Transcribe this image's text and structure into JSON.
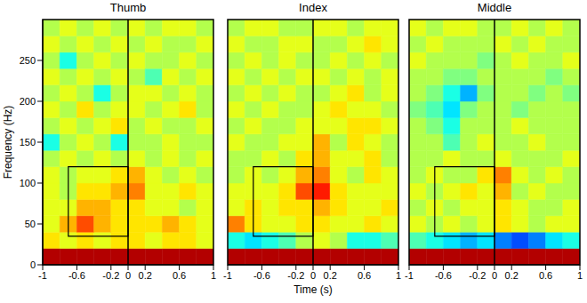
{
  "chart_data": [
    {
      "type": "heatmap",
      "title": "Thumb",
      "ylabel": "Frequency (Hz)",
      "xlim": [
        -1,
        1
      ],
      "xticks": [
        -1,
        -0.6,
        -0.2,
        0,
        0.2,
        0.6,
        1
      ],
      "ylim": [
        0,
        300
      ],
      "yticks": [
        0,
        50,
        100,
        150,
        200,
        250
      ],
      "x_bins": [
        -1,
        -0.8,
        -0.6,
        -0.4,
        -0.2,
        0,
        0.2,
        0.4,
        0.6,
        0.8,
        1
      ],
      "y_bins": [
        0,
        20,
        40,
        60,
        80,
        100,
        120,
        140,
        160,
        180,
        200,
        220,
        240,
        260,
        280,
        300
      ],
      "color_range": [
        -1,
        1
      ],
      "box": {
        "x": [
          -0.7,
          0
        ],
        "y": [
          35,
          120
        ]
      },
      "vline": 0,
      "cells": [
        [
          0.9,
          0.9,
          0.9,
          0.9,
          0.9,
          0.9,
          0.9,
          0.9,
          0.9,
          0.9
        ],
        [
          0.3,
          0.2,
          0.3,
          0.2,
          0.3,
          0.3,
          0.2,
          0.3,
          0.3,
          0.2
        ],
        [
          0.2,
          0.4,
          0.6,
          0.4,
          0.3,
          0.3,
          0.3,
          0.4,
          0.3,
          0.2
        ],
        [
          0.2,
          0.2,
          0.4,
          0.4,
          0.3,
          0.3,
          0.2,
          0.2,
          0.1,
          0.2
        ],
        [
          0.2,
          0.1,
          0.3,
          0.3,
          0.4,
          0.5,
          0.2,
          0.2,
          0.3,
          0.2
        ],
        [
          0.2,
          0.1,
          0.2,
          0.2,
          0.3,
          0.4,
          0.2,
          0.1,
          0.2,
          0.1
        ],
        [
          0.1,
          0.2,
          0.1,
          0.2,
          0.1,
          0.2,
          0.1,
          0.2,
          0.1,
          0.2
        ],
        [
          -0.2,
          0.1,
          0.2,
          0.1,
          -0.2,
          0.1,
          0.1,
          0.2,
          0.1,
          0.1
        ],
        [
          0.1,
          0.2,
          0.1,
          0.2,
          0.3,
          0.1,
          0.2,
          0.1,
          0.1,
          0.2
        ],
        [
          0.2,
          0.1,
          0.3,
          0.1,
          0.2,
          0.2,
          0.1,
          0.2,
          0.3,
          0.1
        ],
        [
          0.1,
          0.2,
          0.1,
          -0.2,
          0.1,
          0.2,
          0.2,
          0.1,
          0.2,
          0.1
        ],
        [
          0.2,
          0.1,
          0.2,
          0.1,
          0.2,
          0.1,
          -0.1,
          0.2,
          0.1,
          0.2
        ],
        [
          0.1,
          -0.2,
          0.1,
          0.2,
          0.1,
          0.2,
          0.1,
          0.1,
          0.2,
          0.1
        ],
        [
          0.2,
          0.1,
          0.2,
          0.1,
          0.2,
          0.1,
          0.2,
          0.1,
          0.1,
          0.2
        ],
        [
          0.1,
          0.2,
          0.1,
          0.2,
          0.1,
          0.2,
          0.1,
          0.2,
          0.2,
          0.1
        ]
      ]
    },
    {
      "type": "heatmap",
      "title": "Index",
      "xlabel": "Time (s)",
      "tick_labels": "x",
      "xlim": [
        -1,
        1
      ],
      "xticks": [
        -1,
        -0.6,
        -0.2,
        0,
        0.2,
        0.6,
        1
      ],
      "ylim": [
        0,
        300
      ],
      "x_bins": [
        -1,
        -0.8,
        -0.6,
        -0.4,
        -0.2,
        0,
        0.2,
        0.4,
        0.6,
        0.8,
        1
      ],
      "y_bins": [
        0,
        20,
        40,
        60,
        80,
        100,
        120,
        140,
        160,
        180,
        200,
        220,
        240,
        260,
        280,
        300
      ],
      "color_range": [
        -1,
        1
      ],
      "box": {
        "x": [
          -0.7,
          0
        ],
        "y": [
          35,
          120
        ]
      },
      "vline": 0,
      "cells": [
        [
          0.9,
          0.9,
          0.9,
          0.9,
          0.9,
          0.9,
          0.9,
          0.9,
          0.9,
          0.9
        ],
        [
          -0.2,
          -0.3,
          -0.2,
          -0.1,
          0.1,
          0.2,
          0.1,
          -0.2,
          -0.2,
          -0.1
        ],
        [
          0.5,
          0.3,
          0.2,
          0.2,
          0.3,
          0.3,
          0.2,
          0.2,
          0.3,
          0.2
        ],
        [
          0.2,
          0.3,
          0.2,
          0.3,
          0.3,
          0.4,
          0.3,
          0.2,
          0.2,
          0.3
        ],
        [
          0.2,
          0.2,
          0.2,
          0.3,
          0.6,
          0.7,
          0.3,
          0.2,
          0.2,
          0.2
        ],
        [
          0.1,
          0.2,
          0.1,
          0.2,
          0.4,
          0.5,
          0.2,
          0.1,
          0.3,
          0.2
        ],
        [
          0.1,
          0.1,
          0.2,
          0.1,
          0.3,
          0.4,
          0.2,
          0.2,
          0.3,
          0.1
        ],
        [
          0.2,
          0.1,
          0.1,
          0.2,
          0.2,
          0.4,
          0.1,
          0.3,
          0.2,
          0.1
        ],
        [
          0.1,
          0.2,
          0.1,
          0.1,
          0.2,
          0.2,
          0.2,
          0.3,
          0.3,
          0.2
        ],
        [
          0.2,
          0.1,
          0.2,
          0.1,
          0.1,
          0.2,
          0.3,
          0.2,
          0.2,
          0.1
        ],
        [
          0.1,
          0.2,
          0.1,
          0.2,
          0.1,
          0.1,
          0.2,
          0.3,
          0.1,
          0.2
        ],
        [
          0.2,
          0.1,
          0.2,
          0.1,
          0.2,
          0.2,
          0.1,
          0.2,
          0.1,
          0.2
        ],
        [
          0.1,
          0.2,
          0.1,
          0.2,
          0.1,
          0.1,
          0.2,
          0.1,
          0.2,
          0.1
        ],
        [
          0.2,
          0.1,
          0.1,
          0.2,
          0.2,
          0.1,
          0.1,
          0.2,
          0.3,
          0.2
        ],
        [
          0.1,
          0.2,
          0.2,
          0.1,
          0.1,
          0.2,
          0.2,
          0.1,
          0.2,
          0.2
        ]
      ]
    },
    {
      "type": "heatmap",
      "title": "Middle",
      "tick_labels": "x",
      "xlim": [
        -1,
        1
      ],
      "xticks": [
        -1,
        -0.6,
        -0.2,
        0,
        0.2,
        0.6,
        1
      ],
      "ylim": [
        0,
        300
      ],
      "x_bins": [
        -1,
        -0.8,
        -0.6,
        -0.4,
        -0.2,
        0,
        0.2,
        0.4,
        0.6,
        0.8,
        1
      ],
      "y_bins": [
        0,
        20,
        40,
        60,
        80,
        100,
        120,
        140,
        160,
        180,
        200,
        220,
        240,
        260,
        280,
        300
      ],
      "color_range": [
        -1,
        1
      ],
      "box": {
        "x": [
          -0.7,
          0
        ],
        "y": [
          35,
          120
        ]
      },
      "vline": 0,
      "cells": [
        [
          0.9,
          0.9,
          0.9,
          0.9,
          0.9,
          0.9,
          0.9,
          0.9,
          0.9,
          0.9
        ],
        [
          -0.1,
          -0.2,
          -0.3,
          -0.4,
          -0.3,
          -0.5,
          -0.6,
          -0.5,
          -0.3,
          -0.2
        ],
        [
          0.2,
          0.1,
          0.2,
          0.1,
          0.2,
          0.3,
          0.2,
          0.1,
          0.2,
          0.2
        ],
        [
          0.1,
          0.2,
          0.1,
          0.2,
          0.2,
          0.3,
          0.2,
          0.1,
          0.1,
          0.2
        ],
        [
          0.2,
          0.1,
          0.2,
          0.3,
          0.2,
          0.4,
          0.1,
          0.2,
          0.1,
          0.1
        ],
        [
          0.1,
          0.2,
          0.1,
          0.1,
          0.3,
          0.5,
          0.2,
          0.1,
          0.2,
          0.1
        ],
        [
          0.1,
          0.1,
          0.2,
          0.1,
          0.1,
          0.2,
          0.1,
          0.1,
          0.1,
          0.2
        ],
        [
          0.1,
          0.1,
          -0.1,
          0.1,
          0.2,
          0.1,
          0.1,
          0.2,
          0.1,
          0.1
        ],
        [
          0.1,
          0.0,
          -0.2,
          0.1,
          0.1,
          0.1,
          0.2,
          0.1,
          0.1,
          0.1
        ],
        [
          0.0,
          -0.1,
          -0.3,
          0.0,
          0.1,
          0.1,
          0.0,
          0.1,
          0.1,
          0.1
        ],
        [
          0.1,
          0.0,
          -0.2,
          -0.4,
          0.0,
          0.1,
          0.1,
          0.0,
          0.1,
          0.0
        ],
        [
          0.1,
          0.1,
          0.0,
          0.0,
          0.1,
          0.1,
          0.1,
          0.1,
          0.0,
          0.1
        ],
        [
          0.2,
          0.1,
          0.1,
          0.1,
          0.0,
          0.1,
          0.2,
          0.1,
          0.1,
          0.2
        ],
        [
          0.1,
          0.2,
          0.1,
          0.1,
          0.1,
          0.2,
          0.1,
          0.2,
          0.1,
          0.1
        ],
        [
          0.2,
          0.1,
          0.2,
          0.2,
          0.1,
          0.1,
          0.2,
          0.1,
          0.2,
          0.1
        ]
      ]
    }
  ]
}
